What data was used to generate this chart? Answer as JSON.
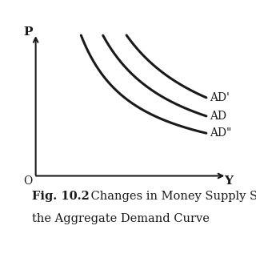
{
  "title_fig": "Fig. 10.2",
  "title_text": "Changes in Money Supply Shifts\nthe Aggregate Demand Curve",
  "xlabel": "Y",
  "ylabel": "P",
  "origin_label": "O",
  "background_color": "#ffffff",
  "line_color": "#1a1a1a",
  "line_width": 2.2,
  "curves": [
    {
      "label": "AD'",
      "x_shift": 0.45,
      "y_shift": 0.45
    },
    {
      "label": "AD",
      "x_shift": 0.3,
      "y_shift": 0.3
    },
    {
      "label": "AD\"",
      "x_shift": 0.15,
      "y_shift": 0.15
    }
  ],
  "xlim": [
    0,
    1.0
  ],
  "ylim": [
    0,
    1.0
  ],
  "label_fontsize": 10,
  "caption_fontsize": 10.5,
  "caption_bold_part": "Fig. 10.2",
  "text_color": "#1a1a1a"
}
